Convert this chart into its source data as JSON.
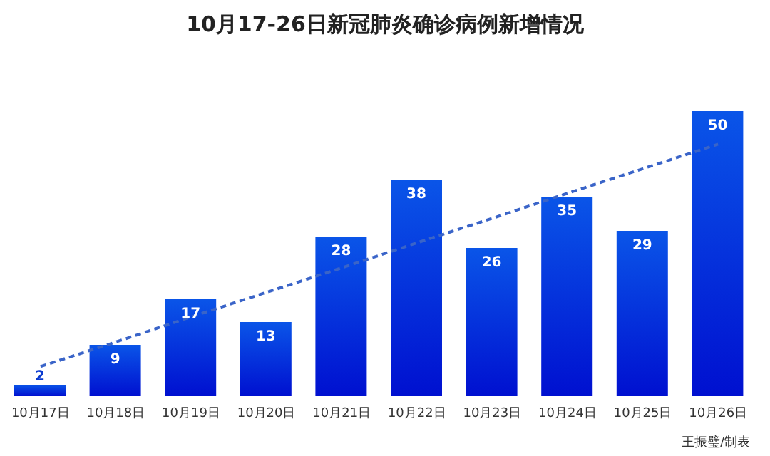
{
  "chart_data": {
    "type": "bar",
    "title": "10月17-26日新冠肺炎确诊病例新增情况",
    "categories": [
      "10月17日",
      "10月18日",
      "10月19日",
      "10月20日",
      "10月21日",
      "10月22日",
      "10月23日",
      "10月24日",
      "10月25日",
      "10月26日"
    ],
    "series": [
      {
        "color": "#0a55e8",
        "values": [
          2,
          9,
          17,
          13,
          28,
          38,
          26,
          35,
          29,
          50
        ],
        "value_labels": [
          "2",
          "9",
          "17",
          "13",
          "28",
          "38",
          "26",
          "35",
          "29",
          "50"
        ]
      },
      {
        "type": "line",
        "color": "#3a64c8",
        "values": [
          5.2,
          9.5,
          13.9,
          18.2,
          22.5,
          26.9,
          31.2,
          35.6,
          39.9,
          44.2
        ],
        "line_style": "dashed"
      }
    ],
    "annotations": [
      "王振璧/制表"
    ]
  }
}
